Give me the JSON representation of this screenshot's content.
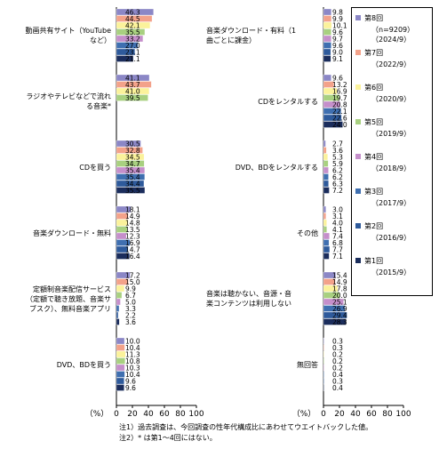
{
  "chart_data": {
    "type": "bar",
    "orientation": "horizontal",
    "unit_label": "（%）",
    "xlim": [
      0,
      100
    ],
    "xticks": [
      0,
      20,
      40,
      60,
      80,
      100
    ],
    "series": [
      {
        "name": "第8回",
        "sub": "（2024/9）",
        "sub2": "（n=9209）",
        "color": "#8b87c6"
      },
      {
        "name": "第7回",
        "sub": "（2022/9）",
        "color": "#f3a28a"
      },
      {
        "name": "第6回",
        "sub": "（2020/9）",
        "color": "#fbf29b"
      },
      {
        "name": "第5回",
        "sub": "（2019/9）",
        "color": "#a8d080"
      },
      {
        "name": "第4回",
        "sub": "（2018/9）",
        "color": "#c58fcb"
      },
      {
        "name": "第3回",
        "sub": "（2017/9）",
        "color": "#3f6fb0"
      },
      {
        "name": "第2回",
        "sub": "（2016/9）",
        "color": "#2e5a9b"
      },
      {
        "name": "第1回",
        "sub": "（2015/9）",
        "color": "#1b2d5c"
      }
    ],
    "panels": [
      {
        "groups": [
          {
            "label": "動画共有サイト（YouTube\nなど）",
            "values": [
              46.3,
              44.5,
              42.1,
              35.5,
              33.2,
              27.0,
              23.1,
              21.1
            ]
          },
          {
            "label": "ラジオやテレビなどで流れ\nる音楽*",
            "values": [
              41.1,
              43.7,
              41.0,
              39.5,
              null,
              null,
              null,
              null
            ]
          },
          {
            "label": "CDを買う",
            "values": [
              30.5,
              32.8,
              34.5,
              34.7,
              35.4,
              35.4,
              34.4,
              35.5
            ]
          },
          {
            "label": "音楽ダウンロード・無料",
            "values": [
              18.1,
              14.9,
              14.8,
              13.5,
              12.3,
              16.9,
              14.7,
              16.4
            ]
          },
          {
            "label": "定額制音楽配信サービス\n（定額で聴き放題、音楽サ\nブスク）、無料音楽アプリ",
            "values": [
              17.2,
              15.0,
              9.9,
              6.7,
              5.0,
              3.3,
              2.2,
              3.6
            ]
          },
          {
            "label": "DVD、BDを買う",
            "values": [
              10.0,
              10.4,
              11.3,
              10.8,
              10.3,
              10.4,
              9.6,
              9.6
            ]
          }
        ]
      },
      {
        "groups": [
          {
            "label": "音楽ダウンロード・有料（1\n曲ごとに課金）",
            "values": [
              9.8,
              9.9,
              10.1,
              9.6,
              9.7,
              9.6,
              9.0,
              9.1
            ]
          },
          {
            "label": "CDをレンタルする",
            "values": [
              9.6,
              13.2,
              16.9,
              19.7,
              20.8,
              22.1,
              22.6,
              24.0
            ]
          },
          {
            "label": "DVD、BDをレンタルする",
            "values": [
              2.7,
              3.6,
              5.3,
              5.9,
              6.2,
              6.2,
              6.3,
              7.2
            ]
          },
          {
            "label": "その他",
            "values": [
              3.0,
              3.1,
              4.0,
              4.1,
              7.4,
              6.8,
              7.7,
              7.1
            ]
          },
          {
            "label": "音楽は聴かない、音源・音\n楽コンテンツは利用しない",
            "values": [
              15.4,
              14.9,
              17.8,
              20.0,
              25.1,
              26.9,
              29.4,
              28.3
            ]
          },
          {
            "label": "無回答",
            "values": [
              0.3,
              0.3,
              0.2,
              0.2,
              0.2,
              0.4,
              0.3,
              0.4
            ]
          }
        ]
      }
    ]
  },
  "notes": [
    "注1）過去調査は、今回調査の性年代構成比にあわせてウエイトバックした値。",
    "注2）* は第1〜4回にはない。"
  ]
}
